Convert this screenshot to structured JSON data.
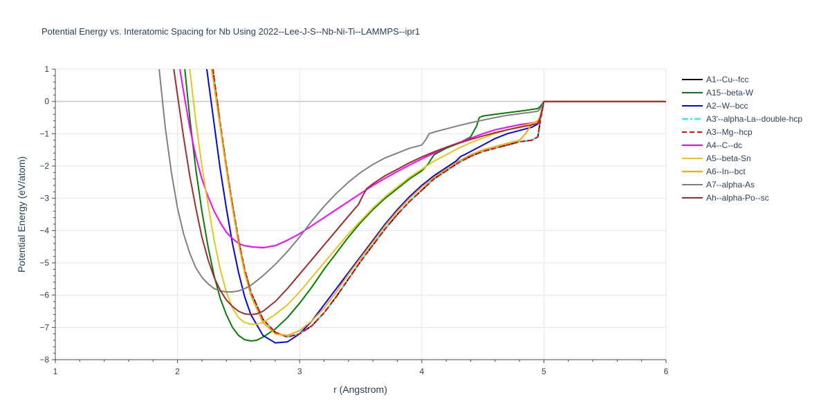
{
  "chart_data": {
    "type": "line",
    "title": "Potential Energy vs. Interatomic Spacing for Nb Using 2022--Lee-J-S--Nb-Ni-Ti--LAMMPS--ipr1",
    "xlabel": "r (Angstrom)",
    "ylabel": "Potential Energy (eV/atom)",
    "xlim": [
      1,
      6
    ],
    "ylim": [
      -8,
      1
    ],
    "xticks": [
      1,
      2,
      3,
      4,
      5,
      6
    ],
    "yticks": [
      1,
      0,
      -1,
      -2,
      -3,
      -4,
      -5,
      -6,
      -7,
      -8
    ],
    "grid": true,
    "legend_position": "right",
    "series": [
      {
        "name": "A1--Cu--fcc",
        "color": "#000000",
        "dash": "solid",
        "x": [
          2.29,
          2.35,
          2.4,
          2.45,
          2.5,
          2.55,
          2.6,
          2.7,
          2.8,
          2.9,
          3.0,
          3.1,
          3.2,
          3.3,
          3.4,
          3.5,
          3.6,
          3.7,
          3.8,
          3.9,
          4.0,
          4.1,
          4.2,
          4.3,
          4.4,
          4.5,
          4.6,
          4.7,
          4.8,
          4.9,
          4.95,
          4.97,
          5.0,
          6.0
        ],
        "y": [
          1.0,
          -0.7,
          -2.0,
          -3.2,
          -4.3,
          -5.2,
          -5.9,
          -6.75,
          -7.15,
          -7.3,
          -7.2,
          -6.95,
          -6.55,
          -6.05,
          -5.5,
          -4.95,
          -4.45,
          -3.95,
          -3.5,
          -3.1,
          -2.75,
          -2.4,
          -2.15,
          -1.9,
          -1.7,
          -1.55,
          -1.45,
          -1.35,
          -1.25,
          -1.2,
          -1.1,
          -0.6,
          0.0,
          0.0
        ]
      },
      {
        "name": "A15--beta-W",
        "color": "#008000",
        "dash": "solid",
        "x": [
          2.06,
          2.1,
          2.15,
          2.2,
          2.25,
          2.3,
          2.35,
          2.4,
          2.45,
          2.5,
          2.55,
          2.6,
          2.65,
          2.7,
          2.8,
          2.9,
          3.0,
          3.1,
          3.2,
          3.3,
          3.4,
          3.5,
          3.6,
          3.7,
          3.8,
          3.9,
          4.0,
          4.05,
          4.1,
          4.2,
          4.3,
          4.4,
          4.45,
          4.47,
          4.5,
          4.6,
          4.7,
          4.8,
          4.9,
          4.95,
          4.97,
          5.0,
          6.0
        ],
        "y": [
          1.0,
          -0.5,
          -2.1,
          -3.4,
          -4.5,
          -5.4,
          -6.1,
          -6.6,
          -7.0,
          -7.25,
          -7.38,
          -7.42,
          -7.4,
          -7.3,
          -7.05,
          -6.7,
          -6.25,
          -5.75,
          -5.2,
          -4.7,
          -4.2,
          -3.75,
          -3.35,
          -3.0,
          -2.7,
          -2.4,
          -2.15,
          -1.95,
          -1.65,
          -1.45,
          -1.3,
          -1.1,
          -0.75,
          -0.5,
          -0.45,
          -0.4,
          -0.35,
          -0.3,
          -0.25,
          -0.22,
          -0.15,
          0.0,
          0.0
        ]
      },
      {
        "name": "A2--W--bcc",
        "color": "#0000ff",
        "dash": "solid",
        "x": [
          2.24,
          2.3,
          2.35,
          2.4,
          2.45,
          2.5,
          2.55,
          2.6,
          2.7,
          2.8,
          2.9,
          3.0,
          3.1,
          3.2,
          3.3,
          3.4,
          3.5,
          3.6,
          3.7,
          3.8,
          3.9,
          4.0,
          4.1,
          4.2,
          4.28,
          4.32,
          4.35,
          4.4,
          4.5,
          4.6,
          4.7,
          4.8,
          4.9,
          4.95,
          4.97,
          5.0,
          6.0
        ],
        "y": [
          1.0,
          -0.7,
          -2.1,
          -3.3,
          -4.4,
          -5.3,
          -6.05,
          -6.6,
          -7.25,
          -7.48,
          -7.45,
          -7.2,
          -6.8,
          -6.3,
          -5.8,
          -5.3,
          -4.8,
          -4.3,
          -3.8,
          -3.35,
          -2.95,
          -2.6,
          -2.3,
          -2.05,
          -1.85,
          -1.7,
          -1.65,
          -1.55,
          -1.35,
          -1.15,
          -1.0,
          -0.9,
          -0.8,
          -0.7,
          -0.5,
          0.0,
          0.0
        ]
      },
      {
        "name": "A3'--alpha-La--double-hcp",
        "color": "#00ffff",
        "dash": "dashdot",
        "x": [
          2.29,
          2.35,
          2.4,
          2.45,
          2.5,
          2.55,
          2.6,
          2.7,
          2.8,
          2.9,
          3.0,
          3.1,
          3.2,
          3.3,
          3.4,
          3.5,
          3.6,
          3.7,
          3.8,
          3.9,
          4.0,
          4.1,
          4.2,
          4.3,
          4.4,
          4.5,
          4.6,
          4.7,
          4.8,
          4.9,
          4.95,
          4.97,
          5.0,
          6.0
        ],
        "y": [
          1.0,
          -0.7,
          -2.0,
          -3.2,
          -4.3,
          -5.2,
          -5.9,
          -6.75,
          -7.15,
          -7.3,
          -7.2,
          -6.95,
          -6.55,
          -6.05,
          -5.5,
          -4.95,
          -4.45,
          -3.95,
          -3.5,
          -3.1,
          -2.75,
          -2.4,
          -2.15,
          -1.9,
          -1.7,
          -1.55,
          -1.45,
          -1.35,
          -1.25,
          -1.2,
          -1.1,
          -0.6,
          0.0,
          0.0
        ]
      },
      {
        "name": "A3--Mg--hcp",
        "color": "#ff0000",
        "dash": "dash",
        "x": [
          2.29,
          2.35,
          2.4,
          2.45,
          2.5,
          2.55,
          2.6,
          2.7,
          2.8,
          2.9,
          3.0,
          3.1,
          3.2,
          3.3,
          3.4,
          3.5,
          3.6,
          3.7,
          3.8,
          3.9,
          4.0,
          4.1,
          4.2,
          4.3,
          4.4,
          4.5,
          4.6,
          4.7,
          4.8,
          4.9,
          4.95,
          4.97,
          5.0,
          6.0
        ],
        "y": [
          1.0,
          -0.7,
          -2.0,
          -3.2,
          -4.3,
          -5.2,
          -5.9,
          -6.75,
          -7.15,
          -7.3,
          -7.2,
          -6.95,
          -6.55,
          -6.05,
          -5.5,
          -4.95,
          -4.45,
          -3.95,
          -3.5,
          -3.1,
          -2.75,
          -2.4,
          -2.15,
          -1.9,
          -1.7,
          -1.55,
          -1.45,
          -1.35,
          -1.25,
          -1.2,
          -1.1,
          -0.6,
          0.0,
          0.0
        ]
      },
      {
        "name": "A4--C--dc",
        "color": "#ff00ff",
        "dash": "solid",
        "x": [
          2.02,
          2.05,
          2.1,
          2.15,
          2.2,
          2.25,
          2.3,
          2.35,
          2.4,
          2.45,
          2.5,
          2.55,
          2.6,
          2.7,
          2.8,
          2.9,
          3.0,
          3.1,
          3.2,
          3.3,
          3.4,
          3.5,
          3.6,
          3.7,
          3.8,
          3.9,
          4.0,
          4.1,
          4.2,
          4.3,
          4.4,
          4.5,
          4.6,
          4.7,
          4.8,
          4.9,
          4.95,
          4.97,
          5.0,
          6.0
        ],
        "y": [
          1.0,
          0.3,
          -0.8,
          -1.7,
          -2.4,
          -2.95,
          -3.4,
          -3.75,
          -4.05,
          -4.25,
          -4.4,
          -4.47,
          -4.5,
          -4.53,
          -4.47,
          -4.3,
          -4.1,
          -3.85,
          -3.6,
          -3.35,
          -3.1,
          -2.85,
          -2.6,
          -2.38,
          -2.17,
          -1.97,
          -1.78,
          -1.6,
          -1.42,
          -1.28,
          -1.14,
          -1.0,
          -0.88,
          -0.8,
          -0.72,
          -0.67,
          -0.62,
          -0.45,
          0.0,
          0.0
        ]
      },
      {
        "name": "A5--beta-Sn",
        "color": "#e6c619",
        "dash": "solid",
        "x": [
          2.1,
          2.15,
          2.2,
          2.25,
          2.3,
          2.35,
          2.4,
          2.45,
          2.5,
          2.55,
          2.6,
          2.65,
          2.7,
          2.8,
          2.9,
          3.0,
          3.1,
          3.2,
          3.3,
          3.4,
          3.5,
          3.6,
          3.7,
          3.8,
          3.9,
          4.0,
          4.1,
          4.2,
          4.3,
          4.4,
          4.5,
          4.6,
          4.7,
          4.8,
          4.9,
          4.95,
          4.97,
          5.0,
          6.0
        ],
        "y": [
          1.0,
          -0.6,
          -2.0,
          -3.2,
          -4.3,
          -5.2,
          -5.9,
          -6.4,
          -6.7,
          -6.85,
          -6.9,
          -6.9,
          -6.85,
          -6.6,
          -6.3,
          -5.9,
          -5.45,
          -5.0,
          -4.55,
          -4.1,
          -3.7,
          -3.3,
          -2.95,
          -2.65,
          -2.35,
          -2.1,
          -1.85,
          -1.65,
          -1.45,
          -1.28,
          -1.13,
          -1.0,
          -0.88,
          -0.78,
          -0.68,
          -0.6,
          -0.45,
          0.0,
          0.0
        ]
      },
      {
        "name": "A6--In--bct",
        "color": "#ffa500",
        "dash": "solid",
        "x": [
          2.28,
          2.35,
          2.4,
          2.45,
          2.5,
          2.55,
          2.6,
          2.7,
          2.8,
          2.9,
          3.0,
          3.1,
          3.2,
          3.3,
          3.4,
          3.5,
          3.6,
          3.7,
          3.8,
          3.9,
          4.0,
          4.1,
          4.2,
          4.3,
          4.4,
          4.5,
          4.6,
          4.7,
          4.8,
          4.85,
          4.9,
          4.95,
          4.97,
          5.0,
          6.0
        ],
        "y": [
          1.0,
          -0.8,
          -2.1,
          -3.3,
          -4.4,
          -5.3,
          -6.0,
          -6.85,
          -7.2,
          -7.25,
          -7.1,
          -6.8,
          -6.4,
          -5.9,
          -5.35,
          -4.85,
          -4.35,
          -3.85,
          -3.4,
          -3.0,
          -2.65,
          -2.35,
          -2.1,
          -1.85,
          -1.65,
          -1.5,
          -1.4,
          -1.3,
          -1.2,
          -1.0,
          -0.7,
          -0.6,
          -0.5,
          0.0,
          0.0
        ]
      },
      {
        "name": "A7--alpha-As",
        "color": "#808080",
        "dash": "solid",
        "x": [
          1.85,
          1.9,
          1.95,
          2.0,
          2.05,
          2.1,
          2.15,
          2.2,
          2.25,
          2.3,
          2.35,
          2.4,
          2.45,
          2.5,
          2.55,
          2.6,
          2.7,
          2.8,
          2.9,
          3.0,
          3.1,
          3.2,
          3.3,
          3.4,
          3.5,
          3.6,
          3.7,
          3.8,
          3.9,
          4.0,
          4.03,
          4.06,
          4.1,
          4.2,
          4.3,
          4.4,
          4.5,
          4.6,
          4.7,
          4.8,
          4.9,
          4.95,
          4.97,
          5.0,
          6.0
        ],
        "y": [
          1.0,
          -0.8,
          -2.2,
          -3.3,
          -4.1,
          -4.7,
          -5.15,
          -5.45,
          -5.65,
          -5.8,
          -5.87,
          -5.9,
          -5.9,
          -5.87,
          -5.8,
          -5.7,
          -5.4,
          -5.05,
          -4.65,
          -4.2,
          -3.7,
          -3.25,
          -2.85,
          -2.5,
          -2.2,
          -1.95,
          -1.75,
          -1.6,
          -1.45,
          -1.35,
          -1.2,
          -1.0,
          -0.95,
          -0.85,
          -0.75,
          -0.66,
          -0.58,
          -0.5,
          -0.43,
          -0.38,
          -0.33,
          -0.3,
          -0.22,
          0.0,
          0.0
        ]
      },
      {
        "name": "Ah--alpha-Po--sc",
        "color": "#a52a2a",
        "dash": "solid",
        "x": [
          1.97,
          2.0,
          2.05,
          2.1,
          2.15,
          2.2,
          2.25,
          2.3,
          2.35,
          2.4,
          2.45,
          2.5,
          2.55,
          2.6,
          2.65,
          2.7,
          2.8,
          2.9,
          3.0,
          3.1,
          3.2,
          3.3,
          3.4,
          3.48,
          3.52,
          3.55,
          3.6,
          3.7,
          3.8,
          3.9,
          4.0,
          4.1,
          4.2,
          4.3,
          4.4,
          4.5,
          4.6,
          4.7,
          4.8,
          4.9,
          4.95,
          4.97,
          5.0,
          6.0
        ],
        "y": [
          1.0,
          0.2,
          -1.1,
          -2.3,
          -3.3,
          -4.2,
          -4.9,
          -5.45,
          -5.85,
          -6.15,
          -6.35,
          -6.5,
          -6.58,
          -6.6,
          -6.58,
          -6.5,
          -6.2,
          -5.8,
          -5.35,
          -4.9,
          -4.45,
          -4.0,
          -3.55,
          -3.2,
          -2.9,
          -2.7,
          -2.55,
          -2.3,
          -2.1,
          -1.9,
          -1.72,
          -1.56,
          -1.42,
          -1.3,
          -1.18,
          -1.07,
          -0.97,
          -0.88,
          -0.8,
          -0.73,
          -0.68,
          -0.5,
          0.0,
          0.0
        ]
      }
    ]
  }
}
